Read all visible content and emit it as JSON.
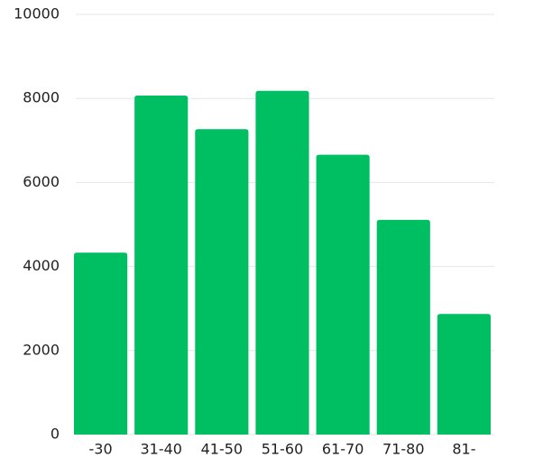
{
  "chart_data": {
    "type": "bar",
    "categories": [
      "-30",
      "31-40",
      "41-50",
      "51-60",
      "61-70",
      "71-80",
      "81-"
    ],
    "values": [
      4330,
      8070,
      7270,
      8180,
      6660,
      5110,
      2870
    ],
    "ylim": [
      0,
      10000
    ],
    "yticks": [
      0,
      2000,
      4000,
      6000,
      8000,
      10000
    ],
    "grid": true,
    "legend": "none",
    "title": "",
    "xlabel": "",
    "ylabel": "",
    "colors": {
      "bar": "#00bf63",
      "grid": "#e6e6e6",
      "text": "#1f1f1f"
    }
  }
}
